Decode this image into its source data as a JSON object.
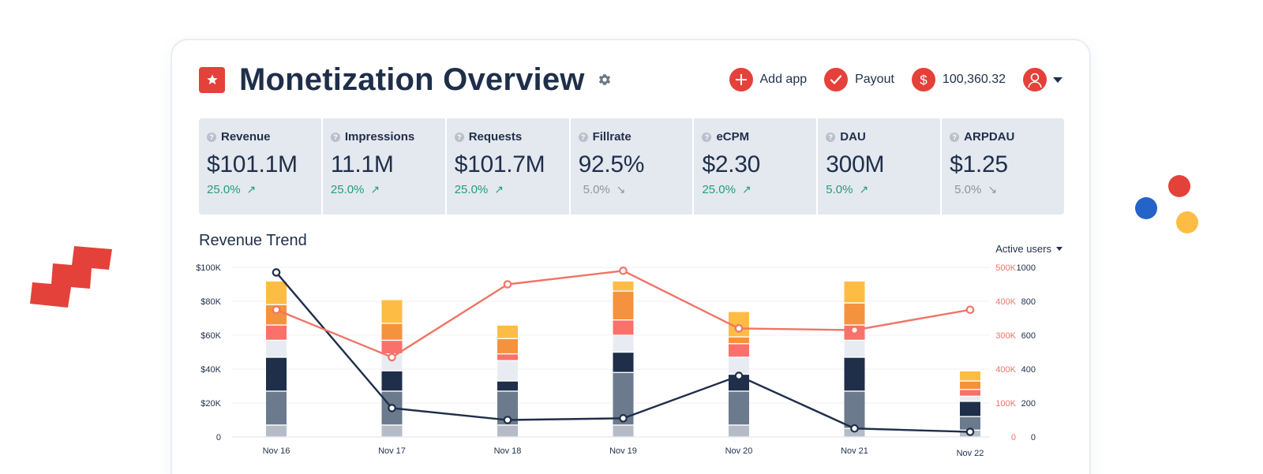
{
  "header": {
    "title": "Monetization Overview",
    "actions": [
      {
        "label": "Add app",
        "icon": "plus-icon"
      },
      {
        "label": "Payout",
        "icon": "check-icon"
      },
      {
        "label": "100,360.32",
        "icon": "dollar-icon"
      }
    ]
  },
  "kpis": [
    {
      "label": "Revenue",
      "value": "$101.1M",
      "delta": "25.0%",
      "trend": "up"
    },
    {
      "label": "Impressions",
      "value": "11.1M",
      "delta": "25.0%",
      "trend": "up"
    },
    {
      "label": "Requests",
      "value": "$101.7M",
      "delta": "25.0%",
      "trend": "up"
    },
    {
      "label": "Fillrate",
      "value": "92.5%",
      "delta": "5.0%",
      "trend": "down"
    },
    {
      "label": "eCPM",
      "value": "$2.30",
      "delta": "25.0%",
      "trend": "up"
    },
    {
      "label": "DAU",
      "value": "300M",
      "delta": "5.0%",
      "trend": "up"
    },
    {
      "label": "ARPDAU",
      "value": "$1.25",
      "delta": "5.0%",
      "trend": "down"
    }
  ],
  "colors": {
    "accent": "#e4413a",
    "navy": "#1f2f4a",
    "positive": "#1f9e7b",
    "neutral": "#8d95a2",
    "line_red": "#f07467"
  },
  "chart_data": {
    "type": "bar",
    "title": "Revenue Trend",
    "dropdown_label": "Active users",
    "categories": [
      "Nov 16",
      "Nov 17",
      "Nov 18",
      "Nov 19",
      "Nov 20",
      "Nov 21",
      "Nov 22"
    ],
    "left_axis": {
      "ticks": [
        "0",
        "$20K",
        "$40K",
        "$60K",
        "$80K",
        "$100K"
      ],
      "range": [
        0,
        100000
      ]
    },
    "right_axis_red": {
      "ticks": [
        "0",
        "100K",
        "400K",
        "300K",
        "400K",
        "500K"
      ]
    },
    "right_axis_navy": {
      "ticks": [
        "0",
        "200",
        "400",
        "600",
        "800",
        "1000"
      ],
      "range": [
        0,
        1000
      ]
    },
    "bar_series": [
      {
        "color": "#b6bcc7",
        "values": [
          7000,
          7000,
          7000,
          7000,
          7000,
          5000,
          4000
        ]
      },
      {
        "color": "#6c7a8d",
        "values": [
          20000,
          20000,
          20000,
          31000,
          20000,
          22000,
          8000
        ]
      },
      {
        "color": "#1f2f4a",
        "values": [
          20000,
          12000,
          6000,
          12000,
          10000,
          20000,
          9000
        ]
      },
      {
        "color": "#e8ecf2",
        "values": [
          10000,
          10000,
          12000,
          10000,
          10000,
          10000,
          3000
        ]
      },
      {
        "color": "#f9716a",
        "values": [
          9000,
          8000,
          4000,
          9000,
          8000,
          9000,
          4000
        ]
      },
      {
        "color": "#f5923e",
        "values": [
          12000,
          10000,
          9000,
          17000,
          4000,
          13000,
          5000
        ]
      },
      {
        "color": "#fdbd45",
        "values": [
          14000,
          14000,
          8000,
          6000,
          15000,
          13000,
          6000
        ]
      }
    ],
    "line_series": [
      {
        "axis": "right_navy",
        "color": "#1f2f4a",
        "values": [
          970,
          170,
          100,
          110,
          360,
          50,
          30
        ]
      },
      {
        "axis": "left",
        "color": "#f07467",
        "values": [
          75000,
          47000,
          90000,
          98000,
          64000,
          63000,
          75000
        ]
      }
    ],
    "grid": true
  }
}
